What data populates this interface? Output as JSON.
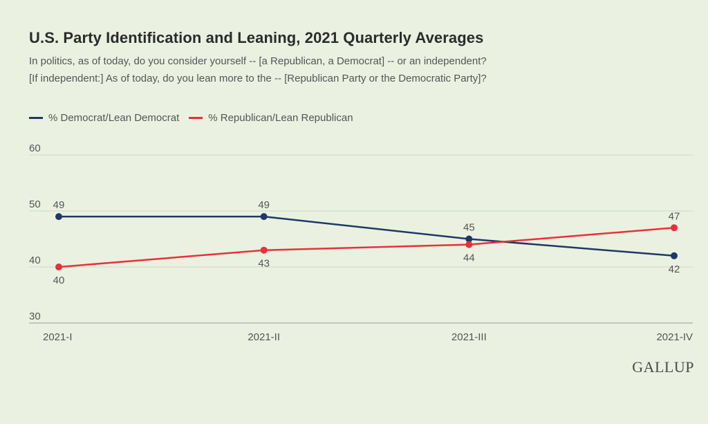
{
  "chart_data": {
    "type": "line",
    "title": "U.S. Party Identification and Leaning, 2021 Quarterly Averages",
    "subtitle": [
      "In politics, as of today, do you consider yourself -- [a Republican, a Democrat] -- or an independent?",
      "[If independent:] As of today, do you lean more to the -- [Republican Party or the Democratic Party]?"
    ],
    "categories": [
      "2021-I",
      "2021-II",
      "2021-III",
      "2021-IV"
    ],
    "series": [
      {
        "name": "% Democrat/Lean Democrat",
        "values": [
          49,
          49,
          45,
          42
        ],
        "color": "#1f3864",
        "label_pos": [
          "above",
          "above",
          "above",
          "below"
        ]
      },
      {
        "name": "% Republican/Lean Republican",
        "values": [
          40,
          43,
          44,
          47
        ],
        "color": "#e8303a",
        "label_pos": [
          "below",
          "below",
          "below",
          "above"
        ]
      }
    ],
    "ylim": [
      30,
      60
    ],
    "yticks": [
      30,
      40,
      50,
      60
    ],
    "grid": true,
    "legend": "top-left"
  },
  "brand": "GALLUP"
}
